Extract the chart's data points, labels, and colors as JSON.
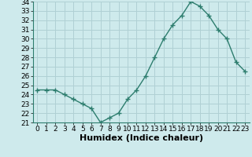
{
  "x": [
    0,
    1,
    2,
    3,
    4,
    5,
    6,
    7,
    8,
    9,
    10,
    11,
    12,
    13,
    14,
    15,
    16,
    17,
    18,
    19,
    20,
    21,
    22,
    23
  ],
  "y": [
    24.5,
    24.5,
    24.5,
    24.0,
    23.5,
    23.0,
    22.5,
    21.0,
    21.5,
    22.0,
    23.5,
    24.5,
    26.0,
    28.0,
    30.0,
    31.5,
    32.5,
    34.0,
    33.5,
    32.5,
    31.0,
    30.0,
    27.5,
    26.5
  ],
  "xlabel": "Humidex (Indice chaleur)",
  "ylim": [
    21,
    34
  ],
  "xlim": [
    -0.5,
    23.5
  ],
  "yticks": [
    21,
    22,
    23,
    24,
    25,
    26,
    27,
    28,
    29,
    30,
    31,
    32,
    33,
    34
  ],
  "xticks": [
    0,
    1,
    2,
    3,
    4,
    5,
    6,
    7,
    8,
    9,
    10,
    11,
    12,
    13,
    14,
    15,
    16,
    17,
    18,
    19,
    20,
    21,
    22,
    23
  ],
  "xtick_labels": [
    "0",
    "1",
    "2",
    "3",
    "4",
    "5",
    "6",
    "7",
    "8",
    "9",
    "10",
    "11",
    "12",
    "13",
    "14",
    "15",
    "16",
    "17",
    "18",
    "19",
    "20",
    "21",
    "22",
    "23"
  ],
  "line_color": "#2d7d6e",
  "marker": "+",
  "marker_size": 4,
  "background_color": "#ceeaec",
  "grid_color": "#b0d0d4",
  "xlabel_fontsize": 8,
  "tick_fontsize": 6.5,
  "line_width": 1.0
}
